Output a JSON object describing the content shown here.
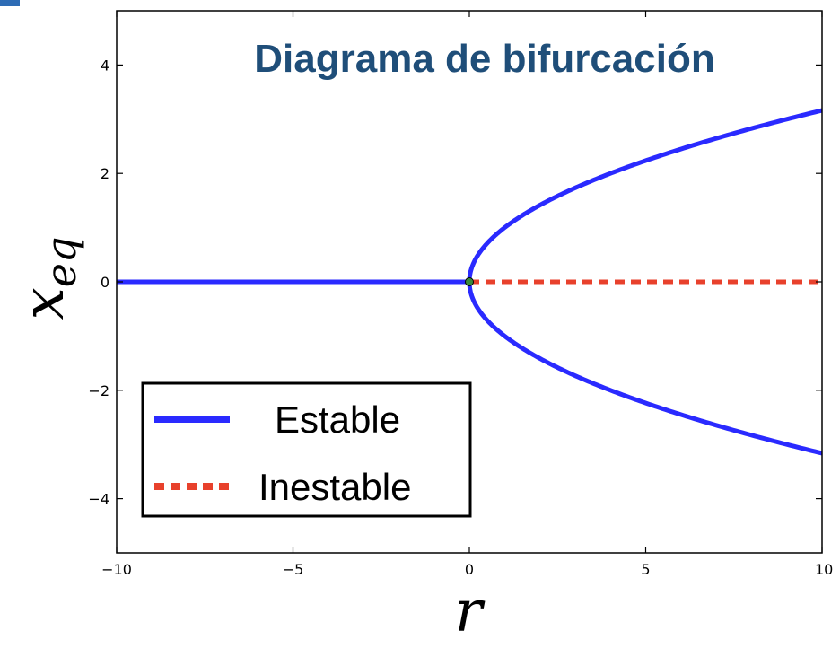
{
  "chart_data": {
    "type": "line",
    "title": "Diagrama de bifurcación",
    "xlabel": "r",
    "ylabel_main": "x",
    "ylabel_sub": "eq",
    "xlim": [
      -10,
      10
    ],
    "ylim": [
      -5,
      5
    ],
    "xticks": [
      -10,
      -5,
      0,
      5,
      10
    ],
    "xtick_labels": [
      "−10",
      "−5",
      "0",
      "5",
      "10"
    ],
    "yticks": [
      -4,
      -2,
      0,
      2,
      4
    ],
    "ytick_labels": [
      "−4",
      "−2",
      "0",
      "2",
      "4"
    ],
    "grid": false,
    "legend_position": "lower-left",
    "series": [
      {
        "name": "Estable",
        "style": "solid",
        "color": "#2a2aff",
        "segments": [
          {
            "x": [
              -10,
              0
            ],
            "y": [
              0,
              0
            ]
          },
          {
            "x": [
              0,
              0.1,
              0.5,
              1,
              2,
              3,
              4,
              5,
              6,
              7,
              8,
              9,
              10
            ],
            "y": [
              0,
              0.32,
              0.71,
              1,
              1.41,
              1.73,
              2,
              2.24,
              2.45,
              2.65,
              2.83,
              3,
              3.16
            ]
          },
          {
            "x": [
              0,
              0.1,
              0.5,
              1,
              2,
              3,
              4,
              5,
              6,
              7,
              8,
              9,
              10
            ],
            "y": [
              0,
              -0.32,
              -0.71,
              -1,
              -1.41,
              -1.73,
              -2,
              -2.24,
              -2.45,
              -2.65,
              -2.83,
              -3,
              -3.16
            ]
          }
        ]
      },
      {
        "name": "Inestable",
        "style": "dashed",
        "color": "#e8412c",
        "segments": [
          {
            "x": [
              0,
              10
            ],
            "y": [
              0,
              0
            ]
          }
        ]
      }
    ],
    "bifurcation_point": {
      "x": 0,
      "y": 0,
      "color": "#3a8a3a"
    }
  }
}
